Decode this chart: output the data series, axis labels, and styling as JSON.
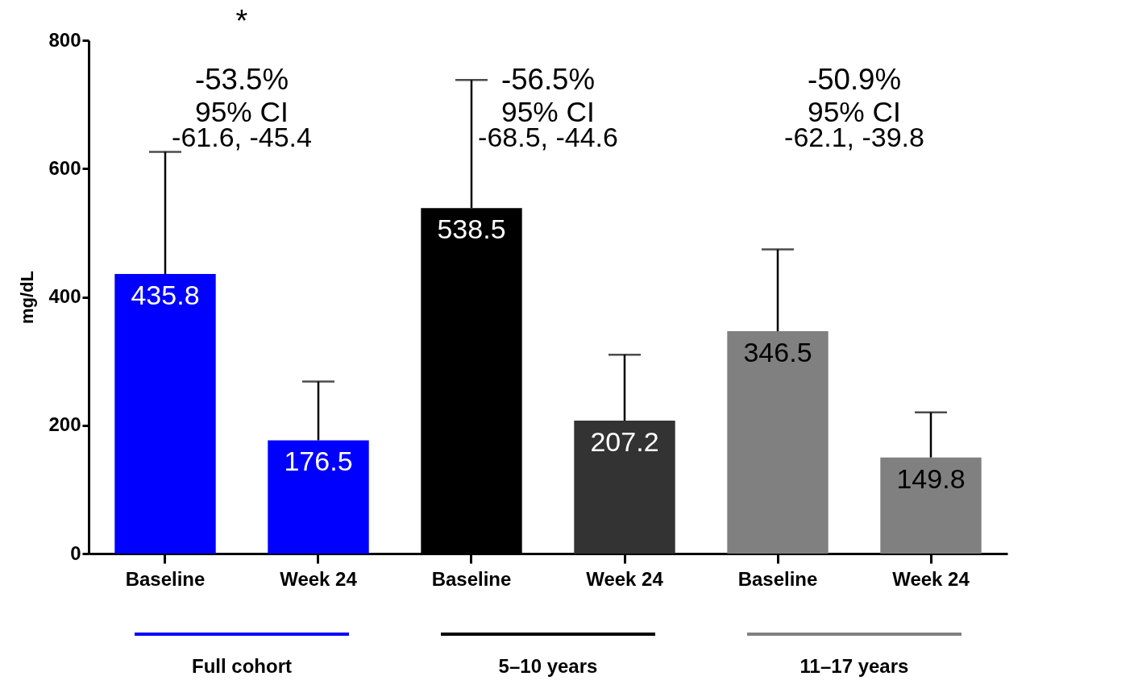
{
  "chart_data": {
    "type": "bar",
    "ylabel": "mg/dL",
    "categories": [
      "Baseline",
      "Week 24",
      "Baseline",
      "Week 24",
      "Baseline",
      "Week 24"
    ],
    "values": [
      435.8,
      176.5,
      538.5,
      207.2,
      346.5,
      149.8
    ],
    "colors": [
      "#0000ff",
      "#0000ff",
      "#000000",
      "#333333",
      "#808080",
      "#808080"
    ],
    "errors": [
      [
        435.8,
        626
      ],
      [
        176.5,
        268
      ],
      [
        538.5,
        738
      ],
      [
        207.2,
        310
      ],
      [
        346.5,
        474
      ],
      [
        149.8,
        220
      ]
    ],
    "ylim": [
      0,
      800
    ],
    "yticks": [
      0,
      200,
      400,
      600,
      800
    ],
    "grid": false,
    "data_labels": true,
    "annotations": [
      "-53.5%",
      "95% CI",
      "-61.6, -45.4",
      "-56.5%",
      "95% CI",
      "-68.5, -44.6",
      "-50.9%",
      "95% CI",
      "-62.1, -39.8",
      "*",
      "Full cohort",
      "5–10 years",
      "11–17 years"
    ]
  }
}
